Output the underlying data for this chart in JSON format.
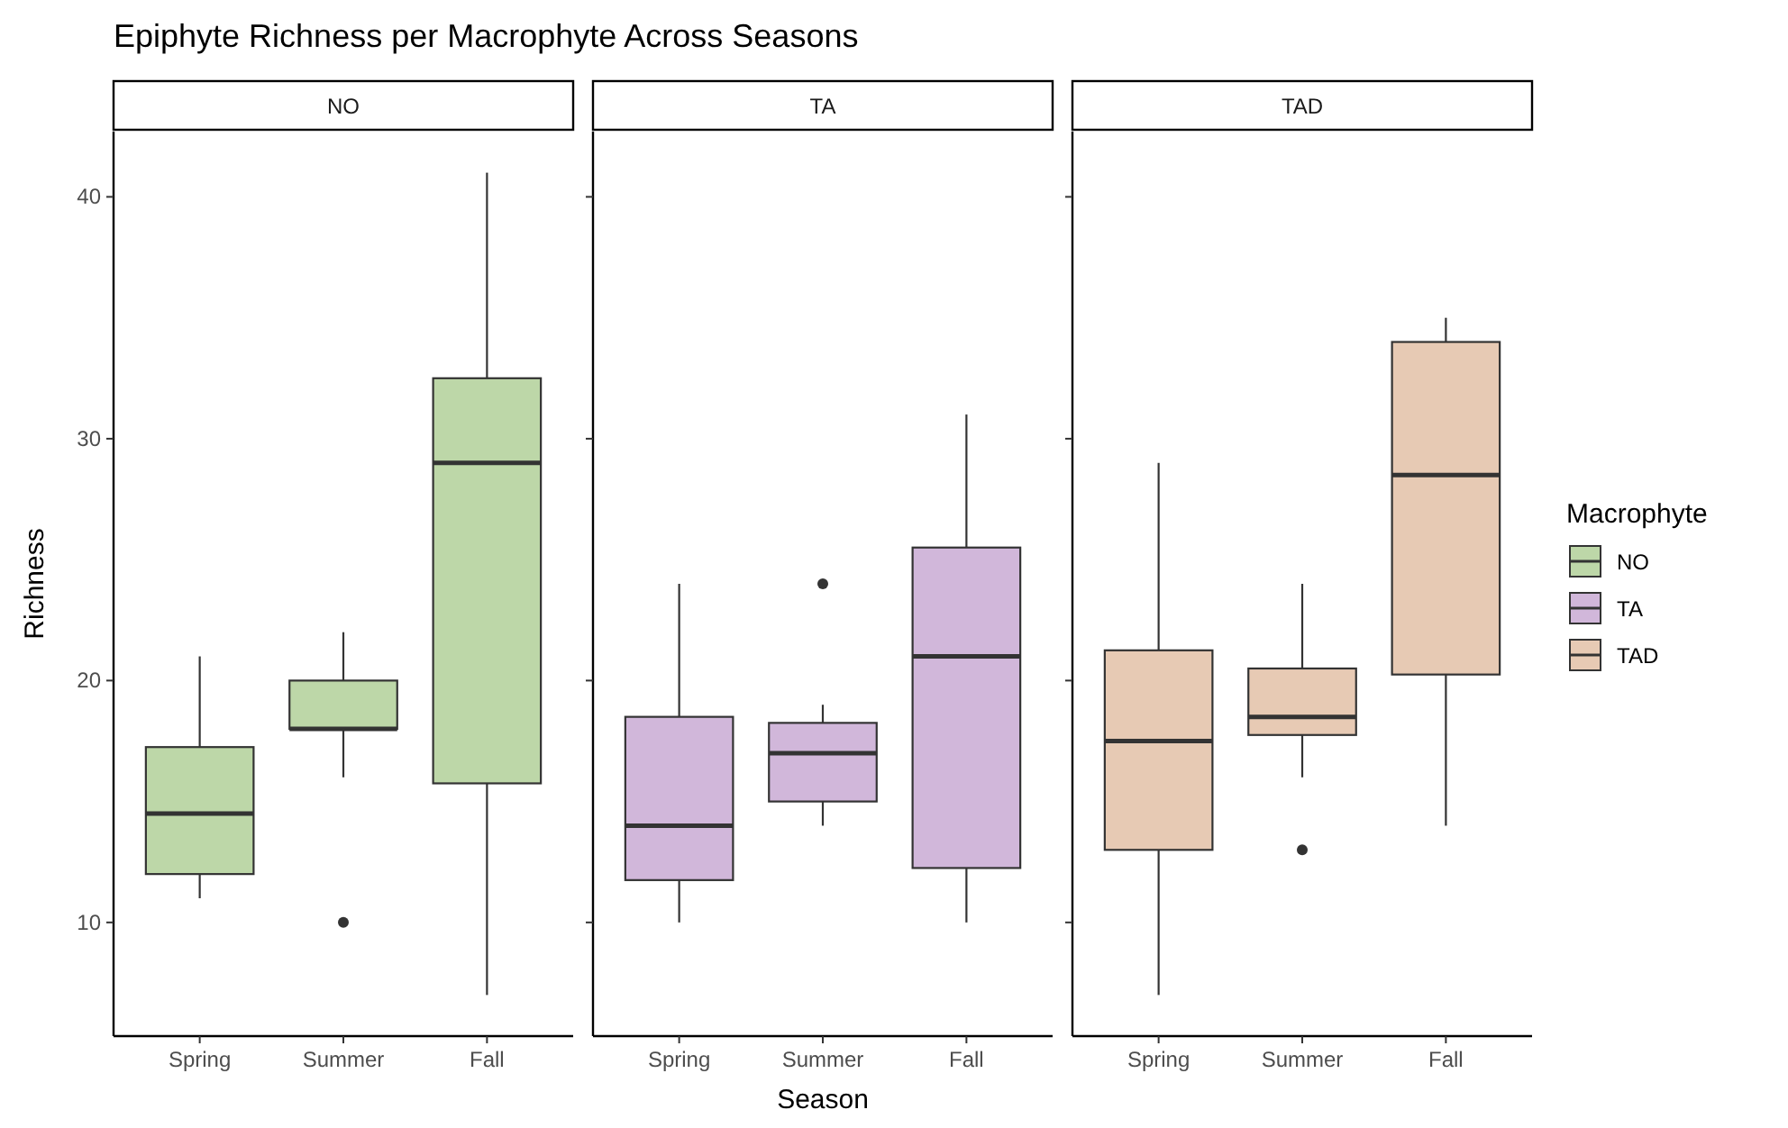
{
  "chart_data": [
    {
      "type": "box",
      "title": "Epiphyte Richness per Macrophyte Across Seasons",
      "subtitle": "NO",
      "ylabel": "Richness",
      "categories": [
        "Spring",
        "Summer",
        "Fall"
      ],
      "ylim": [
        5.3,
        42.7
      ],
      "yticks": [
        10,
        20,
        30,
        40
      ],
      "grid": false,
      "series": [
        {
          "name": "NO",
          "color": "#bdd7a8",
          "boxes": [
            {
              "low": 11,
              "q1": 12,
              "median": 14.5,
              "q3": 17.25,
              "high": 21
            },
            {
              "low": 16,
              "q1": 18,
              "median": 18,
              "q3": 20,
              "high": 22,
              "outliers": [
                10
              ]
            },
            {
              "low": 7,
              "q1": 15.75,
              "median": 29,
              "q3": 32.5,
              "high": 41
            }
          ]
        }
      ]
    },
    {
      "type": "box",
      "subtitle": "TA",
      "xlabel": "Season",
      "categories": [
        "Spring",
        "Summer",
        "Fall"
      ],
      "ylim": [
        5.3,
        42.7
      ],
      "yticks": [
        10,
        20,
        30,
        40
      ],
      "tick_labels": "x",
      "grid": false,
      "series": [
        {
          "name": "TA",
          "color": "#d1b7da",
          "boxes": [
            {
              "low": 10,
              "q1": 11.75,
              "median": 14,
              "q3": 18.5,
              "high": 24
            },
            {
              "low": 14,
              "q1": 15,
              "median": 17,
              "q3": 18.25,
              "high": 19,
              "outliers": [
                24
              ]
            },
            {
              "low": 10,
              "q1": 12.25,
              "median": 21,
              "q3": 25.5,
              "high": 31
            }
          ]
        }
      ]
    },
    {
      "type": "box",
      "subtitle": "TAD",
      "legend_title": "Macrophyte",
      "legend": "right",
      "categories": [
        "Spring",
        "Summer",
        "Fall"
      ],
      "ylim": [
        5.3,
        42.7
      ],
      "yticks": [
        10,
        20,
        30,
        40
      ],
      "tick_labels": "x",
      "grid": false,
      "series": [
        {
          "name": "TAD",
          "color": "#e7cab4",
          "boxes": [
            {
              "low": 7,
              "q1": 13,
              "median": 17.5,
              "q3": 21.25,
              "high": 29
            },
            {
              "low": 16,
              "q1": 17.75,
              "median": 18.5,
              "q3": 20.5,
              "high": 24,
              "outliers": [
                13
              ]
            },
            {
              "low": 14,
              "q1": 20.25,
              "median": 28.5,
              "q3": 34,
              "high": 35
            }
          ]
        }
      ]
    }
  ]
}
